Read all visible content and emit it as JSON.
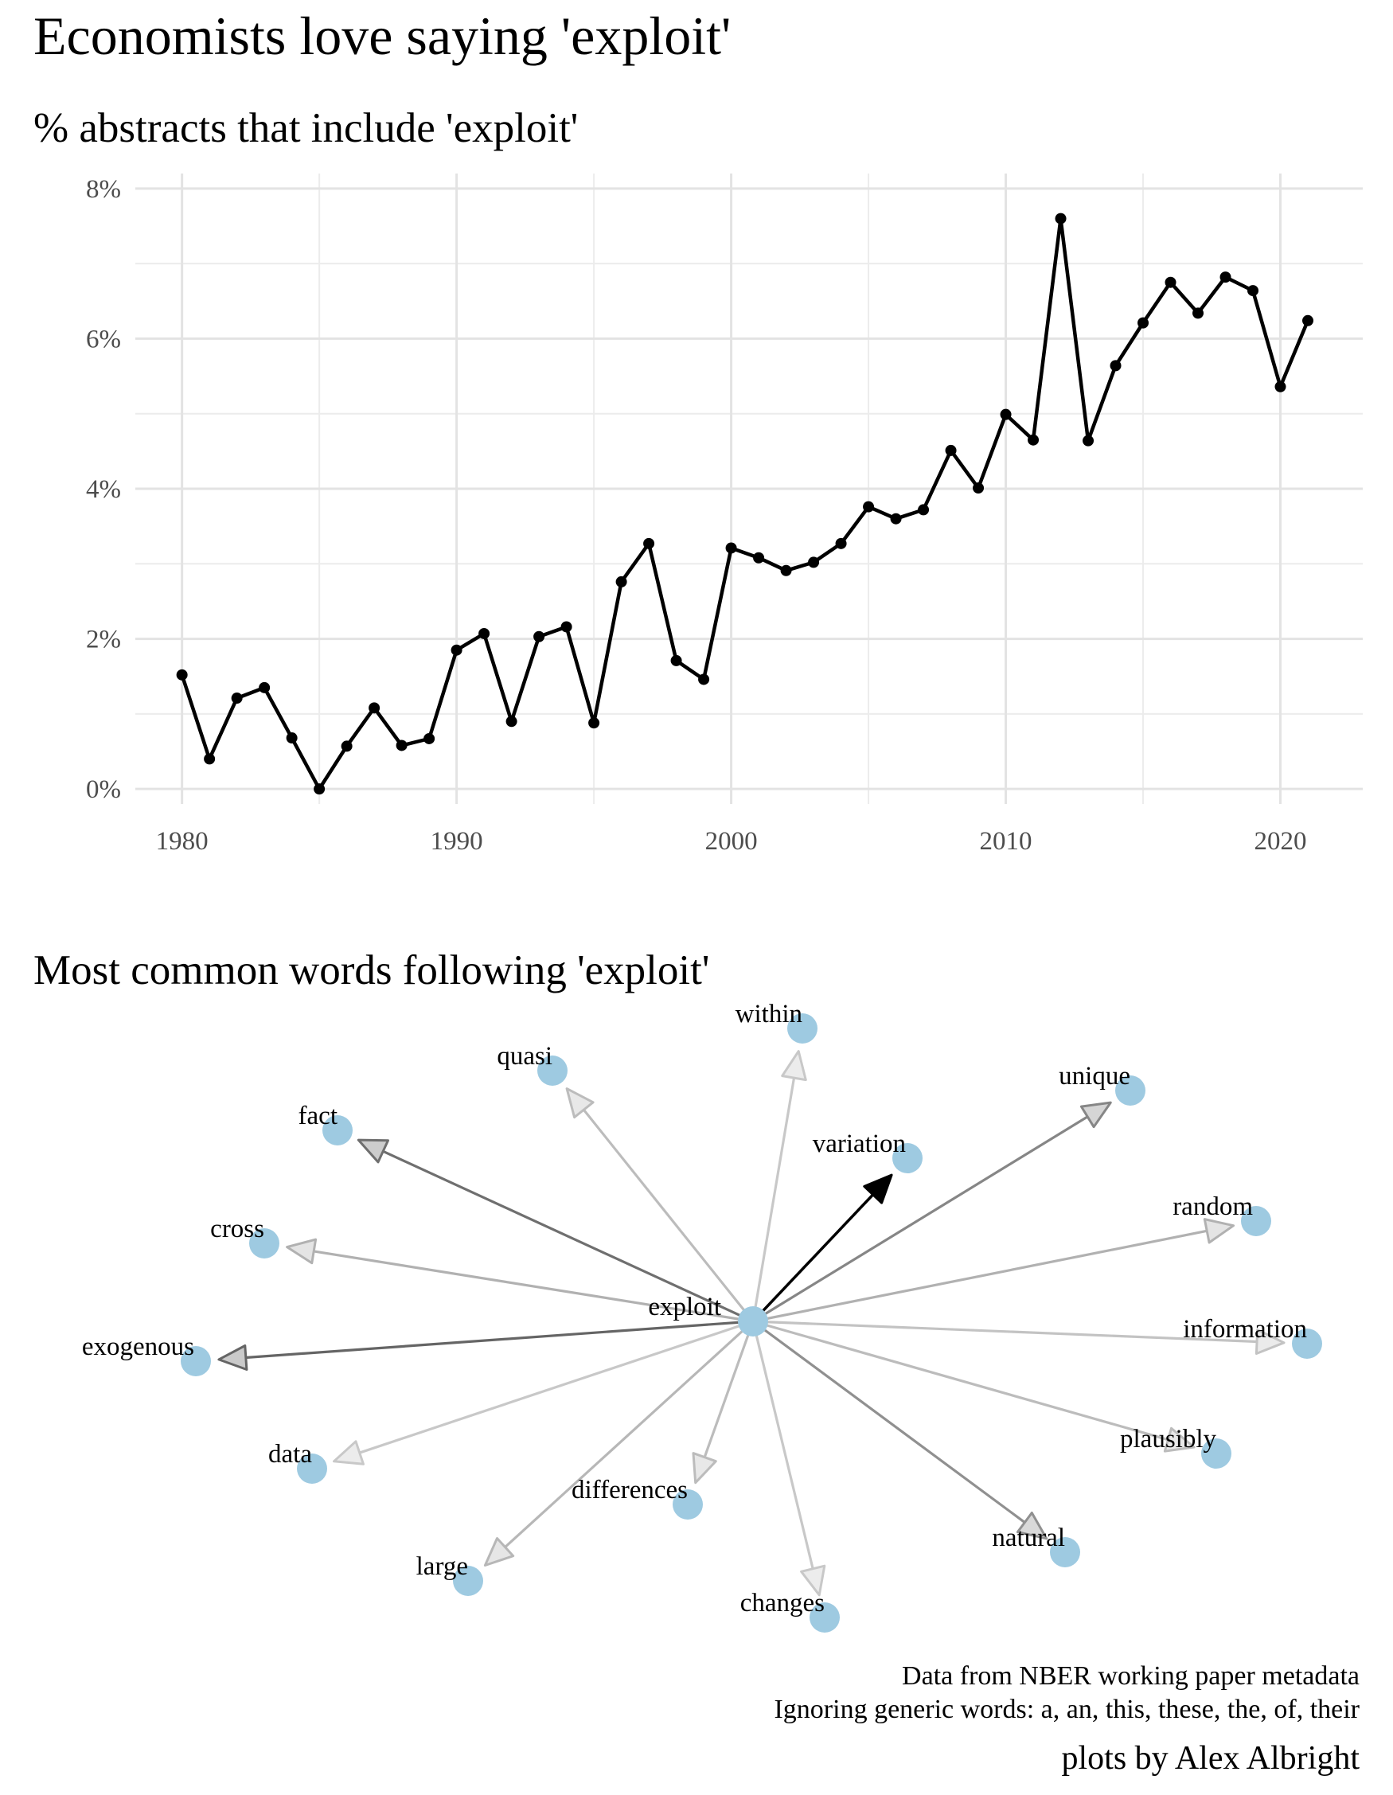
{
  "title": "Economists love saying 'exploit'",
  "chart_data": [
    {
      "type": "line",
      "title": "% abstracts that include 'exploit'",
      "xlabel": "",
      "ylabel": "",
      "xlim": [
        1978.3,
        2023.0
      ],
      "ylim": [
        -0.2,
        8.2
      ],
      "x_ticks": [
        1980,
        1990,
        2000,
        2010,
        2020
      ],
      "y_ticks": [
        0,
        2,
        4,
        6,
        8
      ],
      "y_tick_labels": [
        "0%",
        "2%",
        "4%",
        "6%",
        "8%"
      ],
      "grid": true,
      "line_color": "#000000",
      "x": [
        1980,
        1981,
        1982,
        1983,
        1984,
        1985,
        1986,
        1987,
        1988,
        1989,
        1990,
        1991,
        1992,
        1993,
        1994,
        1995,
        1996,
        1997,
        1998,
        1999,
        2000,
        2001,
        2002,
        2003,
        2004,
        2005,
        2006,
        2007,
        2008,
        2009,
        2010,
        2011,
        2012,
        2013,
        2014,
        2015,
        2016,
        2017,
        2018,
        2019,
        2020,
        2021
      ],
      "values": [
        1.52,
        0.4,
        1.21,
        1.35,
        0.68,
        0.0,
        0.57,
        1.08,
        0.58,
        0.67,
        1.85,
        2.07,
        0.9,
        2.03,
        2.16,
        0.88,
        2.76,
        3.27,
        1.71,
        1.46,
        3.21,
        3.08,
        2.91,
        3.02,
        3.27,
        3.76,
        3.6,
        3.72,
        4.51,
        4.01,
        4.99,
        4.65,
        7.6,
        4.64,
        5.64,
        6.21,
        6.75,
        6.34,
        6.82,
        6.64,
        5.36,
        6.24
      ]
    },
    {
      "type": "network",
      "title": "Most common words following 'exploit'",
      "center": "exploit",
      "node_color": "#9ecae1",
      "edge_color": "#000000",
      "nodes": [
        {
          "label": "exploit",
          "weight": 0
        },
        {
          "label": "variation",
          "weight": 1.0
        },
        {
          "label": "exogenous",
          "weight": 0.55
        },
        {
          "label": "fact",
          "weight": 0.5
        },
        {
          "label": "unique",
          "weight": 0.4
        },
        {
          "label": "natural",
          "weight": 0.35
        },
        {
          "label": "cross",
          "weight": 0.2
        },
        {
          "label": "random",
          "weight": 0.2
        },
        {
          "label": "large",
          "weight": 0.18
        },
        {
          "label": "quasi",
          "weight": 0.16
        },
        {
          "label": "differences",
          "weight": 0.16
        },
        {
          "label": "plausibly",
          "weight": 0.16
        },
        {
          "label": "information",
          "weight": 0.13
        },
        {
          "label": "data",
          "weight": 0.1
        },
        {
          "label": "within",
          "weight": 0.1
        },
        {
          "label": "changes",
          "weight": 0.1
        }
      ]
    }
  ],
  "footer": {
    "source": "Data from NBER working paper metadata",
    "note": "Ignoring generic words: a, an, this, these, the, of, their",
    "credit": "plots by Alex Albright"
  }
}
